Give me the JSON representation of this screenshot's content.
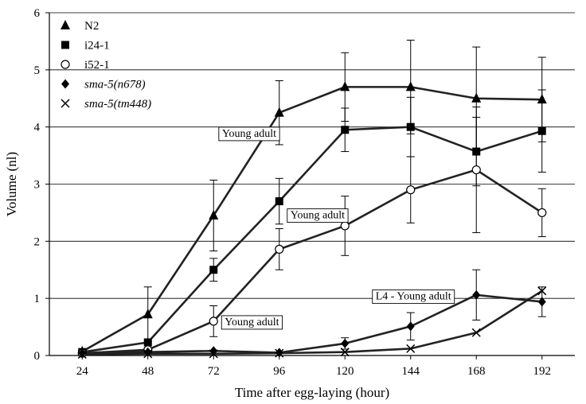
{
  "chart_data": {
    "type": "line",
    "xlabel": "Time after egg-laying (hour)",
    "ylabel": "Volume (nl)",
    "xlim": [
      12,
      204
    ],
    "ylim": [
      0,
      6
    ],
    "x_ticks": [
      "24",
      "48",
      "72",
      "96",
      "120",
      "144",
      "168",
      "192"
    ],
    "y_ticks": [
      "0",
      "1",
      "2",
      "3",
      "4",
      "5",
      "6"
    ],
    "grid": "horizontal",
    "legend_position": "top-left",
    "series": [
      {
        "name": "N2",
        "marker": "triangle",
        "x": [
          24,
          48,
          72,
          96,
          120,
          144,
          168,
          192
        ],
        "y": [
          0.07,
          0.72,
          2.45,
          4.25,
          4.7,
          4.7,
          4.5,
          4.48
        ],
        "err": [
          0,
          0.48,
          0.62,
          0.56,
          0.6,
          0.82,
          0.9,
          0.74
        ]
      },
      {
        "name": "i24-1",
        "marker": "square",
        "x": [
          24,
          48,
          72,
          96,
          120,
          144,
          168,
          192
        ],
        "y": [
          0.06,
          0.23,
          1.5,
          2.7,
          3.95,
          4.0,
          3.57,
          3.93
        ],
        "err": [
          0,
          0,
          0.2,
          0.4,
          0.38,
          0.52,
          0.6,
          0.72
        ]
      },
      {
        "name": "i52-1",
        "marker": "circle-open",
        "x": [
          24,
          48,
          72,
          96,
          120,
          144,
          168,
          192
        ],
        "y": [
          0.04,
          0.1,
          0.6,
          1.86,
          2.27,
          2.9,
          3.25,
          2.5
        ],
        "err": [
          0,
          0,
          0.27,
          0.36,
          0.52,
          0.58,
          1.1,
          0.42
        ]
      },
      {
        "name": "sma-5(n678)",
        "marker": "diamond",
        "x": [
          24,
          48,
          72,
          96,
          120,
          144,
          168,
          192
        ],
        "y": [
          0.04,
          0.06,
          0.08,
          0.05,
          0.21,
          0.51,
          1.06,
          0.94
        ],
        "err": [
          0,
          0,
          0,
          0,
          0.1,
          0.24,
          0.44,
          0.26
        ]
      },
      {
        "name": "sma-5(tm448)",
        "marker": "x",
        "x": [
          24,
          48,
          72,
          96,
          120,
          144,
          168,
          192
        ],
        "y": [
          0.02,
          0.03,
          0.03,
          0.04,
          0.06,
          0.12,
          0.4,
          1.13
        ],
        "err": [
          0,
          0,
          0,
          0,
          0,
          0,
          0,
          0
        ]
      }
    ],
    "annotations": [
      {
        "text": "Young adult",
        "x": 85,
        "y": 3.83
      },
      {
        "text": "Young adult",
        "x": 110,
        "y": 2.4
      },
      {
        "text": "Young adult",
        "x": 86,
        "y": 0.53
      },
      {
        "text": "L4 - Young adult",
        "x": 145,
        "y": 0.98
      }
    ]
  }
}
